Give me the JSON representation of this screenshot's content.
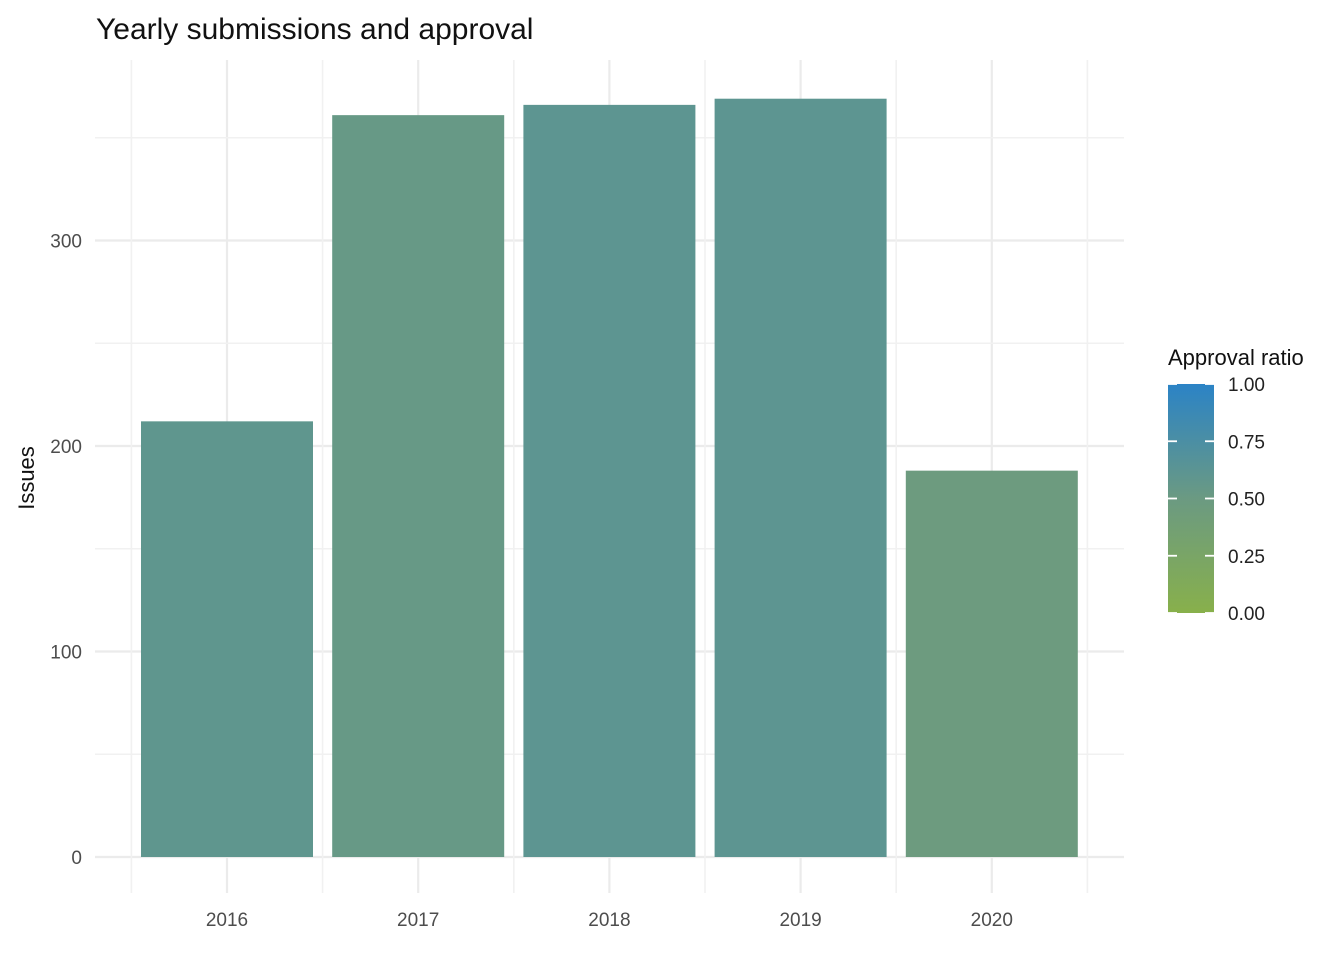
{
  "chart_data": {
    "type": "bar",
    "title": "Yearly submissions and approval",
    "xlabel": "",
    "ylabel": "Issues",
    "categories": [
      "2016",
      "2017",
      "2018",
      "2019",
      "2020"
    ],
    "values": [
      212,
      361,
      366,
      369,
      188
    ],
    "approval_ratio": [
      0.59,
      0.53,
      0.61,
      0.61,
      0.47
    ],
    "ylim": [
      0,
      380
    ],
    "y_ticks": [
      0,
      100,
      200,
      300
    ],
    "y_tick_labels": [
      "0",
      "100",
      "200",
      "300"
    ],
    "grid": true,
    "legend": {
      "title": "Approval ratio",
      "position": "right",
      "ticks": [
        1.0,
        0.75,
        0.5,
        0.25,
        0.0
      ],
      "tick_labels": [
        "1.00",
        "0.75",
        "0.50",
        "0.25",
        "0.00"
      ],
      "color_low": "#88b04b",
      "color_high": "#2b83c6"
    }
  }
}
